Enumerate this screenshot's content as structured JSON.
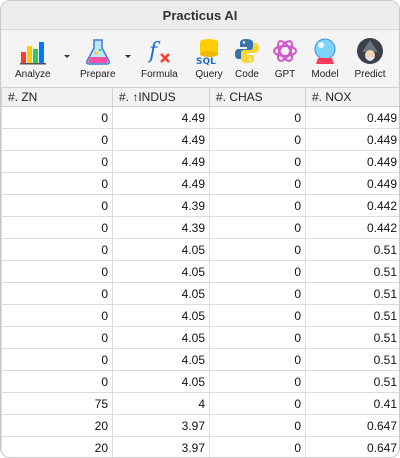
{
  "window": {
    "title": "Practicus AI"
  },
  "toolbar": {
    "analyze": "Analyze",
    "prepare": "Prepare",
    "formula": "Formula",
    "query": "Query",
    "code": "Code",
    "gpt": "GPT",
    "model": "Model",
    "predict": "Predict"
  },
  "table": {
    "headers": [
      "#. ZN",
      "#. ↑INDUS",
      "#. CHAS",
      "#. NOX"
    ],
    "rows": [
      [
        "0",
        "4.49",
        "0",
        "0.449"
      ],
      [
        "0",
        "4.49",
        "0",
        "0.449"
      ],
      [
        "0",
        "4.49",
        "0",
        "0.449"
      ],
      [
        "0",
        "4.49",
        "0",
        "0.449"
      ],
      [
        "0",
        "4.39",
        "0",
        "0.442"
      ],
      [
        "0",
        "4.39",
        "0",
        "0.442"
      ],
      [
        "0",
        "4.05",
        "0",
        "0.51"
      ],
      [
        "0",
        "4.05",
        "0",
        "0.51"
      ],
      [
        "0",
        "4.05",
        "0",
        "0.51"
      ],
      [
        "0",
        "4.05",
        "0",
        "0.51"
      ],
      [
        "0",
        "4.05",
        "0",
        "0.51"
      ],
      [
        "0",
        "4.05",
        "0",
        "0.51"
      ],
      [
        "0",
        "4.05",
        "0",
        "0.51"
      ],
      [
        "75",
        "4",
        "0",
        "0.41"
      ],
      [
        "20",
        "3.97",
        "0",
        "0.647"
      ],
      [
        "20",
        "3.97",
        "0",
        "0.647"
      ]
    ]
  }
}
